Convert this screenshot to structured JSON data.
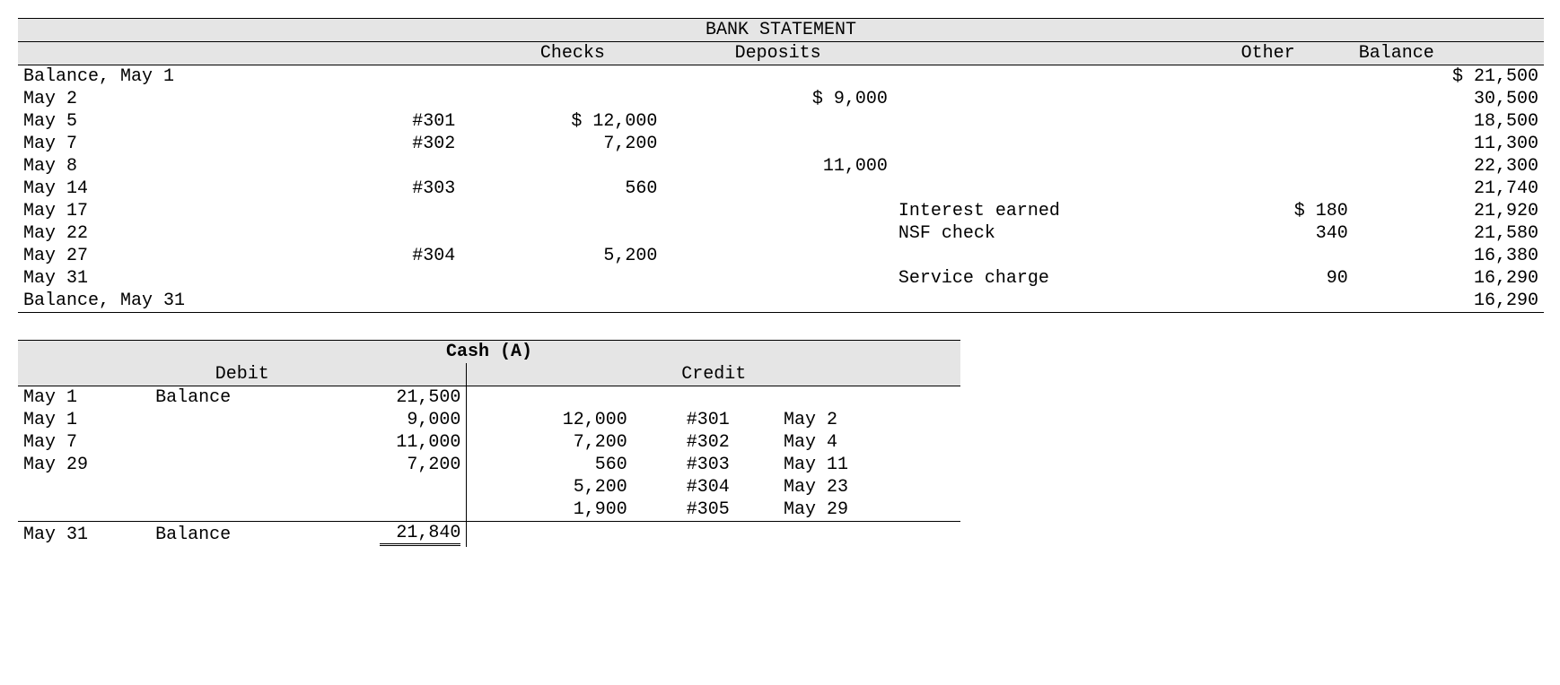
{
  "bank_statement": {
    "title": "BANK STATEMENT",
    "columns": {
      "checks": "Checks",
      "deposits": "Deposits",
      "other": "Other",
      "balance": "Balance"
    },
    "rows": [
      {
        "date": "Balance, May 1",
        "check_num": "",
        "checks": "",
        "deposits": "",
        "other_desc": "",
        "other_amt": "",
        "balance": "$ 21,500"
      },
      {
        "date": "May 2",
        "check_num": "",
        "checks": "",
        "deposits": "$ 9,000",
        "other_desc": "",
        "other_amt": "",
        "balance": "30,500"
      },
      {
        "date": "May 5",
        "check_num": "#301",
        "checks": "$ 12,000",
        "deposits": "",
        "other_desc": "",
        "other_amt": "",
        "balance": "18,500"
      },
      {
        "date": "May 7",
        "check_num": "#302",
        "checks": "7,200",
        "deposits": "",
        "other_desc": "",
        "other_amt": "",
        "balance": "11,300"
      },
      {
        "date": "May 8",
        "check_num": "",
        "checks": "",
        "deposits": "11,000",
        "other_desc": "",
        "other_amt": "",
        "balance": "22,300"
      },
      {
        "date": "May 14",
        "check_num": "#303",
        "checks": "560",
        "deposits": "",
        "other_desc": "",
        "other_amt": "",
        "balance": "21,740"
      },
      {
        "date": "May 17",
        "check_num": "",
        "checks": "",
        "deposits": "",
        "other_desc": "Interest earned",
        "other_amt": "$ 180",
        "balance": "21,920"
      },
      {
        "date": "May 22",
        "check_num": "",
        "checks": "",
        "deposits": "",
        "other_desc": "NSF check",
        "other_amt": "340",
        "balance": "21,580"
      },
      {
        "date": "May 27",
        "check_num": "#304",
        "checks": "5,200",
        "deposits": "",
        "other_desc": "",
        "other_amt": "",
        "balance": "16,380"
      },
      {
        "date": "May 31",
        "check_num": "",
        "checks": "",
        "deposits": "",
        "other_desc": "Service charge",
        "other_amt": "90",
        "balance": "16,290"
      },
      {
        "date": "Balance, May 31",
        "check_num": "",
        "checks": "",
        "deposits": "",
        "other_desc": "",
        "other_amt": "",
        "balance": "16,290"
      }
    ],
    "col_widths": {
      "date": 310,
      "check_num": 110,
      "checks": 170,
      "deposits": 220,
      "other_desc": 280,
      "other_amt": 160,
      "balance": 180
    },
    "header_bg": "#e5e5e5"
  },
  "cash_account": {
    "title": "Cash (A)",
    "headers": {
      "debit": "Debit",
      "credit": "Credit"
    },
    "debit_rows": [
      {
        "date": "May 1",
        "label": "Balance",
        "amount": "21,500"
      },
      {
        "date": "May 1",
        "label": "",
        "amount": "9,000"
      },
      {
        "date": "May 7",
        "label": "",
        "amount": "11,000"
      },
      {
        "date": "May 29",
        "label": "",
        "amount": "7,200"
      },
      {
        "date": "",
        "label": "",
        "amount": ""
      },
      {
        "date": "",
        "label": "",
        "amount": ""
      }
    ],
    "credit_rows": [
      {
        "amount": "",
        "ref": "",
        "date": ""
      },
      {
        "amount": "12,000",
        "ref": "#301",
        "date": "May 2"
      },
      {
        "amount": "7,200",
        "ref": "#302",
        "date": "May 4"
      },
      {
        "amount": "560",
        "ref": "#303",
        "date": "May 11"
      },
      {
        "amount": "5,200",
        "ref": "#304",
        "date": "May 23"
      },
      {
        "amount": "1,900",
        "ref": "#305",
        "date": "May 29"
      }
    ],
    "ending": {
      "date": "May 31",
      "label": "Balance",
      "amount": "21,840"
    },
    "col_widths": {
      "d_date": 140,
      "d_label": 160,
      "d_amt": 180,
      "c_amt": 180,
      "c_ref": 100,
      "c_date": 200
    }
  }
}
